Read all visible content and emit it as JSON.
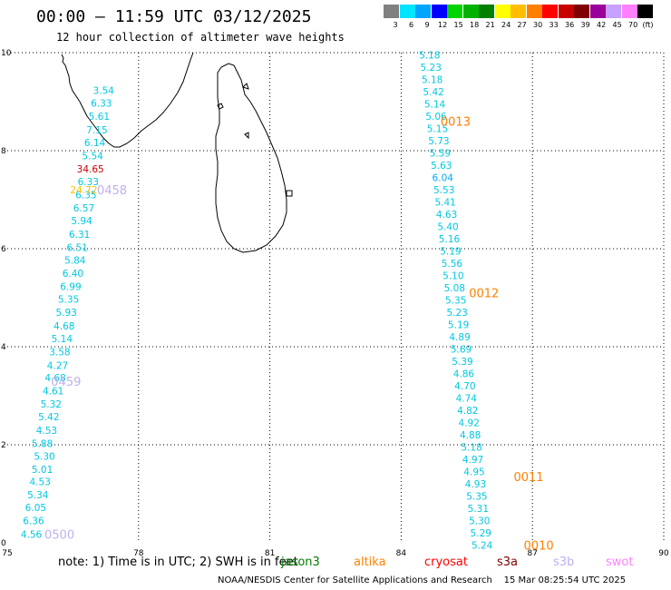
{
  "header": {
    "title": "00:00 — 11:59 UTC 03/12/2025",
    "subtitle": "12 hour collection of altimeter wave heights"
  },
  "legend": {
    "unit": "(ft)",
    "bins": [
      {
        "label": "3",
        "color": "#808080"
      },
      {
        "label": "6",
        "color": "#00e5ff"
      },
      {
        "label": "9",
        "color": "#00a5ff"
      },
      {
        "label": "12",
        "color": "#0000ff"
      },
      {
        "label": "15",
        "color": "#00d400"
      },
      {
        "label": "18",
        "color": "#00b200"
      },
      {
        "label": "21",
        "color": "#007f00"
      },
      {
        "label": "24",
        "color": "#ffff00"
      },
      {
        "label": "27",
        "color": "#ffbf00"
      },
      {
        "label": "30",
        "color": "#ff8000"
      },
      {
        "label": "33",
        "color": "#ff0000"
      },
      {
        "label": "36",
        "color": "#c80000"
      },
      {
        "label": "39",
        "color": "#800000"
      },
      {
        "label": "42",
        "color": "#9a009a"
      },
      {
        "label": "45",
        "color": "#c8a0ff"
      },
      {
        "label": "70",
        "color": "#ff80ff"
      },
      {
        "label": "",
        "color": "#000000"
      }
    ]
  },
  "map": {
    "lon_range": [
      75,
      90
    ],
    "lat_range": [
      0,
      10
    ],
    "x_ticks": [
      {
        "value": 75,
        "label": "75"
      },
      {
        "value": 78,
        "label": "78"
      },
      {
        "value": 81,
        "label": "81"
      },
      {
        "value": 84,
        "label": "84"
      },
      {
        "value": 87,
        "label": "87"
      },
      {
        "value": 90,
        "label": "90"
      }
    ],
    "y_ticks": [
      {
        "value": 0,
        "label": "0"
      },
      {
        "value": 2,
        "label": "2"
      },
      {
        "value": 4,
        "label": "4"
      },
      {
        "value": 6,
        "label": "6"
      },
      {
        "value": 8,
        "label": "8"
      },
      {
        "value": 10,
        "label": "10"
      }
    ],
    "tracks": [
      {
        "points": [
          {
            "lon": 75.55,
            "lat": 0.18,
            "text": "4.56",
            "color": "#00c8e0"
          },
          {
            "lon": 75.6,
            "lat": 0.45,
            "text": "6.36",
            "color": "#00c8e0"
          },
          {
            "lon": 75.65,
            "lat": 0.72,
            "text": "6.05",
            "color": "#00c8e0"
          },
          {
            "lon": 75.7,
            "lat": 0.98,
            "text": "5.34",
            "color": "#00c8e0"
          },
          {
            "lon": 75.75,
            "lat": 1.25,
            "text": "4.53",
            "color": "#00c8e0"
          },
          {
            "lon": 75.8,
            "lat": 1.5,
            "text": "5.01",
            "color": "#00c8e0"
          },
          {
            "lon": 75.85,
            "lat": 1.77,
            "text": "5.30",
            "color": "#00c8e0"
          },
          {
            "lon": 75.8,
            "lat": 2.03,
            "text": "5.88",
            "color": "#00c8e0"
          },
          {
            "lon": 75.9,
            "lat": 2.3,
            "text": "4.53",
            "color": "#00c8e0"
          },
          {
            "lon": 75.95,
            "lat": 2.57,
            "text": "5.42",
            "color": "#00c8e0"
          },
          {
            "lon": 76.0,
            "lat": 2.83,
            "text": "5.32",
            "color": "#00c8e0"
          },
          {
            "lon": 76.05,
            "lat": 3.1,
            "text": "4.61",
            "color": "#00c8e0"
          },
          {
            "lon": 76.1,
            "lat": 3.37,
            "text": "4.68",
            "color": "#00c8e0"
          },
          {
            "lon": 76.15,
            "lat": 3.62,
            "text": "4.27",
            "color": "#00c8e0"
          },
          {
            "lon": 76.2,
            "lat": 3.9,
            "text": "3.58",
            "color": "#00c8e0"
          },
          {
            "lon": 76.25,
            "lat": 4.17,
            "text": "5.14",
            "color": "#00c8e0"
          },
          {
            "lon": 76.3,
            "lat": 4.43,
            "text": "4.68",
            "color": "#00c8e0"
          },
          {
            "lon": 76.35,
            "lat": 4.7,
            "text": "5.93",
            "color": "#00c8e0"
          },
          {
            "lon": 76.4,
            "lat": 4.97,
            "text": "5.35",
            "color": "#00c8e0"
          },
          {
            "lon": 76.45,
            "lat": 5.23,
            "text": "6.99",
            "color": "#00c8e0"
          },
          {
            "lon": 76.5,
            "lat": 5.5,
            "text": "6.40",
            "color": "#00c8e0"
          },
          {
            "lon": 76.55,
            "lat": 5.77,
            "text": "5.84",
            "color": "#00c8e0"
          },
          {
            "lon": 76.6,
            "lat": 6.03,
            "text": "6.51",
            "color": "#00c8e0"
          },
          {
            "lon": 76.65,
            "lat": 6.3,
            "text": "6.31",
            "color": "#00c8e0"
          },
          {
            "lon": 76.7,
            "lat": 6.57,
            "text": "5.94",
            "color": "#00c8e0"
          },
          {
            "lon": 76.75,
            "lat": 6.83,
            "text": "6.57",
            "color": "#00c8e0"
          },
          {
            "lon": 76.8,
            "lat": 7.1,
            "text": "6.35",
            "color": "#00c8e0"
          },
          {
            "lon": 76.75,
            "lat": 7.2,
            "text": "24.72",
            "color": "#ffbf00"
          },
          {
            "lon": 76.85,
            "lat": 7.37,
            "text": "6.33",
            "color": "#00c8e0"
          },
          {
            "lon": 76.9,
            "lat": 7.63,
            "text": "34.65",
            "color": "#c80000"
          },
          {
            "lon": 76.95,
            "lat": 7.9,
            "text": "5.54",
            "color": "#00c8e0"
          },
          {
            "lon": 77.0,
            "lat": 8.17,
            "text": "6.14",
            "color": "#00c8e0"
          },
          {
            "lon": 77.05,
            "lat": 8.43,
            "text": "7.15",
            "color": "#00c8e0"
          },
          {
            "lon": 77.1,
            "lat": 8.7,
            "text": "5.61",
            "color": "#00c8e0"
          },
          {
            "lon": 77.15,
            "lat": 8.97,
            "text": "6.33",
            "color": "#00c8e0"
          },
          {
            "lon": 77.2,
            "lat": 9.23,
            "text": "3.54",
            "color": "#00c8e0"
          }
        ],
        "labels": [
          {
            "lon": 77.05,
            "lat": 7.2,
            "text": "0458",
            "color": "#c0b0f0"
          },
          {
            "lon": 76.0,
            "lat": 3.3,
            "text": "0459",
            "color": "#c0b0f0"
          },
          {
            "lon": 75.85,
            "lat": 0.18,
            "text": "0500",
            "color": "#c0b0f0"
          }
        ]
      },
      {
        "points": [
          {
            "lon": 84.65,
            "lat": 9.95,
            "text": "5.18",
            "color": "#00c8e0"
          },
          {
            "lon": 84.68,
            "lat": 9.7,
            "text": "5.23",
            "color": "#00c8e0"
          },
          {
            "lon": 84.71,
            "lat": 9.45,
            "text": "5.18",
            "color": "#00c8e0"
          },
          {
            "lon": 84.74,
            "lat": 9.2,
            "text": "5.42",
            "color": "#00c8e0"
          },
          {
            "lon": 84.77,
            "lat": 8.95,
            "text": "5.14",
            "color": "#00c8e0"
          },
          {
            "lon": 84.8,
            "lat": 8.7,
            "text": "5.06",
            "color": "#00c8e0"
          },
          {
            "lon": 84.83,
            "lat": 8.45,
            "text": "5.15",
            "color": "#00c8e0"
          },
          {
            "lon": 84.86,
            "lat": 8.2,
            "text": "5.73",
            "color": "#00c8e0"
          },
          {
            "lon": 84.89,
            "lat": 7.95,
            "text": "5.59",
            "color": "#00c8e0"
          },
          {
            "lon": 84.92,
            "lat": 7.7,
            "text": "5.63",
            "color": "#00c8e0"
          },
          {
            "lon": 84.95,
            "lat": 7.45,
            "text": "6.04",
            "color": "#00a5ff"
          },
          {
            "lon": 84.98,
            "lat": 7.2,
            "text": "5.53",
            "color": "#00c8e0"
          },
          {
            "lon": 85.01,
            "lat": 6.95,
            "text": "5.41",
            "color": "#00c8e0"
          },
          {
            "lon": 85.04,
            "lat": 6.7,
            "text": "4.63",
            "color": "#00c8e0"
          },
          {
            "lon": 85.07,
            "lat": 6.45,
            "text": "5.40",
            "color": "#00c8e0"
          },
          {
            "lon": 85.1,
            "lat": 6.2,
            "text": "5.16",
            "color": "#00c8e0"
          },
          {
            "lon": 85.13,
            "lat": 5.95,
            "text": "5.19",
            "color": "#00c8e0"
          },
          {
            "lon": 85.16,
            "lat": 5.7,
            "text": "5.56",
            "color": "#00c8e0"
          },
          {
            "lon": 85.19,
            "lat": 5.45,
            "text": "5.10",
            "color": "#00c8e0"
          },
          {
            "lon": 85.22,
            "lat": 5.2,
            "text": "5.08",
            "color": "#00c8e0"
          },
          {
            "lon": 85.25,
            "lat": 4.95,
            "text": "5.35",
            "color": "#00c8e0"
          },
          {
            "lon": 85.28,
            "lat": 4.7,
            "text": "5.23",
            "color": "#00c8e0"
          },
          {
            "lon": 85.31,
            "lat": 4.45,
            "text": "5.19",
            "color": "#00c8e0"
          },
          {
            "lon": 85.34,
            "lat": 4.2,
            "text": "4.89",
            "color": "#00c8e0"
          },
          {
            "lon": 85.37,
            "lat": 3.95,
            "text": "5.69",
            "color": "#00c8e0"
          },
          {
            "lon": 85.4,
            "lat": 3.7,
            "text": "5.39",
            "color": "#00c8e0"
          },
          {
            "lon": 85.43,
            "lat": 3.45,
            "text": "4.86",
            "color": "#00c8e0"
          },
          {
            "lon": 85.46,
            "lat": 3.2,
            "text": "4.70",
            "color": "#00c8e0"
          },
          {
            "lon": 85.49,
            "lat": 2.95,
            "text": "4.74",
            "color": "#00c8e0"
          },
          {
            "lon": 85.52,
            "lat": 2.7,
            "text": "4.82",
            "color": "#00c8e0"
          },
          {
            "lon": 85.55,
            "lat": 2.45,
            "text": "4.92",
            "color": "#00c8e0"
          },
          {
            "lon": 85.58,
            "lat": 2.2,
            "text": "4.88",
            "color": "#00c8e0"
          },
          {
            "lon": 85.61,
            "lat": 1.95,
            "text": "5.18",
            "color": "#00c8e0"
          },
          {
            "lon": 85.64,
            "lat": 1.7,
            "text": "4.97",
            "color": "#00c8e0"
          },
          {
            "lon": 85.67,
            "lat": 1.45,
            "text": "4.95",
            "color": "#00c8e0"
          },
          {
            "lon": 85.7,
            "lat": 1.2,
            "text": "4.93",
            "color": "#00c8e0"
          },
          {
            "lon": 85.73,
            "lat": 0.95,
            "text": "5.35",
            "color": "#00c8e0"
          },
          {
            "lon": 85.76,
            "lat": 0.7,
            "text": "5.31",
            "color": "#00c8e0"
          },
          {
            "lon": 85.79,
            "lat": 0.45,
            "text": "5.30",
            "color": "#00c8e0"
          },
          {
            "lon": 85.82,
            "lat": 0.2,
            "text": "5.29",
            "color": "#00c8e0"
          },
          {
            "lon": 85.85,
            "lat": -0.05,
            "text": "5.24",
            "color": "#00c8e0"
          }
        ],
        "labels": [
          {
            "lon": 84.9,
            "lat": 8.6,
            "text": "0013",
            "color": "#ff8000"
          },
          {
            "lon": 85.55,
            "lat": 5.1,
            "text": "0012",
            "color": "#ff8000"
          },
          {
            "lon": 86.57,
            "lat": 1.35,
            "text": "0011",
            "color": "#ff8000"
          },
          {
            "lon": 86.8,
            "lat": -0.05,
            "text": "0010",
            "color": "#ff8000"
          }
        ]
      }
    ]
  },
  "bottom": {
    "note": "note: 1) Time is in UTC; 2) SWH is in feet",
    "satellites": [
      {
        "name": "jason3",
        "color": "#007f00"
      },
      {
        "name": "altika",
        "color": "#ff8000"
      },
      {
        "name": "cryosat",
        "color": "#ff0000"
      },
      {
        "name": "s3a",
        "color": "#800000"
      },
      {
        "name": "s3b",
        "color": "#c0b0f0"
      },
      {
        "name": "swot",
        "color": "#ff80ff"
      }
    ],
    "credit": "NOAA/NESDIS Center for Satellite Applications and Research",
    "timestamp": "15 Mar 08:25:54 UTC 2025"
  }
}
